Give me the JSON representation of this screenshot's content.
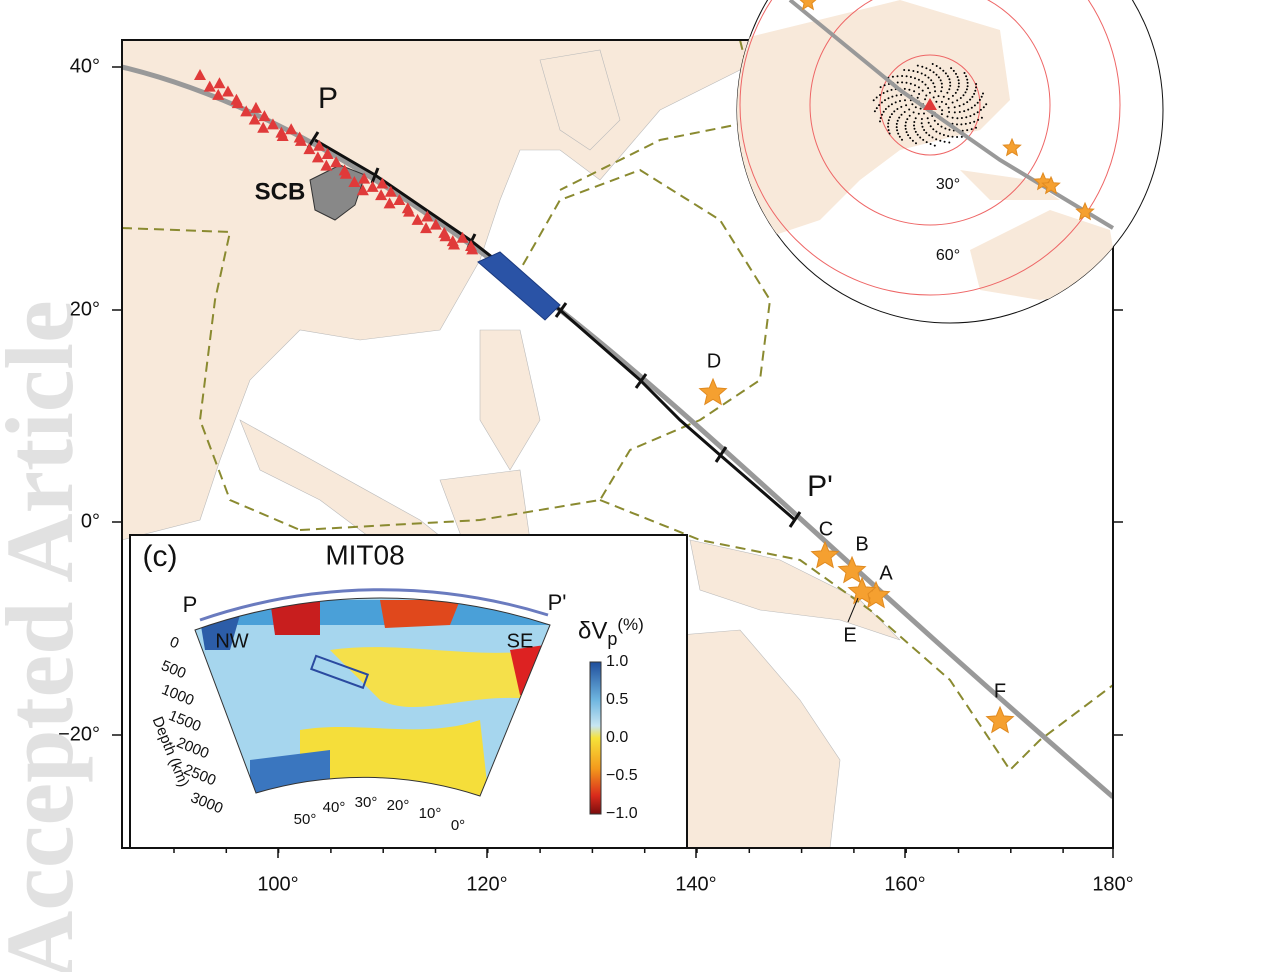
{
  "watermark": "Accepted Article",
  "map": {
    "lon_labels": [
      "100°",
      "120°",
      "140°",
      "160°",
      "180°"
    ],
    "lat_labels": [
      "40°",
      "20°",
      "0°",
      "−20°"
    ],
    "profile_start": "P",
    "profile_end": "P'",
    "block": "SCB",
    "events": [
      "A",
      "B",
      "C",
      "D",
      "E",
      "F"
    ],
    "globe_rings": [
      "30°",
      "60°"
    ]
  },
  "section": {
    "panel": "(c)",
    "model": "MIT08",
    "start": "P",
    "end": "P'",
    "left": "NW",
    "right": "SE",
    "depth_title": "Depth (km)",
    "depth_ticks": [
      "0",
      "500",
      "1000",
      "1500",
      "2000",
      "2500",
      "3000"
    ],
    "distance_ticks": [
      "50°",
      "40°",
      "30°",
      "20°",
      "10°",
      "0°"
    ],
    "colorbar": {
      "symbol": "δV",
      "subscript": "p",
      "unit": "(%)",
      "ticks": [
        "1.0",
        "0.5",
        "0.0",
        "−0.5",
        "−1.0"
      ]
    }
  }
}
